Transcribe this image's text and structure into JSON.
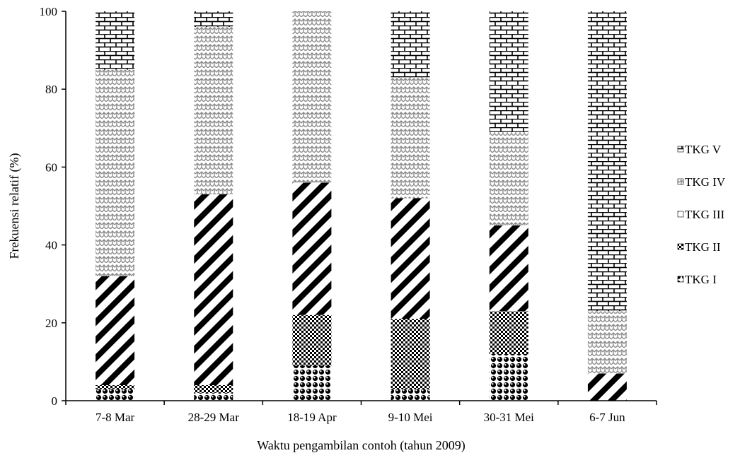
{
  "chart_data": {
    "type": "bar",
    "stacked": true,
    "categories": [
      "7-8 Mar",
      "28-29 Mar",
      "18-19 Apr",
      "9-10 Mei",
      "30-31 Mei",
      "6-7 Jun"
    ],
    "series": [
      {
        "name": "TKG I",
        "pattern": "bubbles",
        "values": [
          3,
          2,
          9,
          3,
          12,
          0
        ]
      },
      {
        "name": "TKG II",
        "pattern": "checker",
        "values": [
          1,
          2,
          13,
          18,
          11,
          0
        ]
      },
      {
        "name": "TKG III",
        "pattern": "diagonal",
        "values": [
          28,
          49,
          34,
          31,
          22,
          7
        ]
      },
      {
        "name": "TKG IV",
        "pattern": "herringbone",
        "values": [
          53,
          43,
          44,
          31,
          24,
          16
        ]
      },
      {
        "name": "TKG V",
        "pattern": "brick",
        "values": [
          15,
          4,
          0,
          17,
          31,
          77
        ]
      }
    ],
    "title": "",
    "xlabel": "Waktu pengambilan contoh (tahun 2009)",
    "ylabel": "Frekuensi relatif (%)",
    "ylim": [
      0,
      100
    ],
    "yticks": [
      0,
      20,
      40,
      60,
      80,
      100
    ],
    "grid": false,
    "legend_position": "right",
    "legend_order": [
      "TKG V",
      "TKG IV",
      "TKG III",
      "TKG II",
      "TKG I"
    ],
    "colors": {
      "ink": "#000000",
      "background": "#ffffff",
      "pattern_gray": "#8c8c8c"
    }
  }
}
